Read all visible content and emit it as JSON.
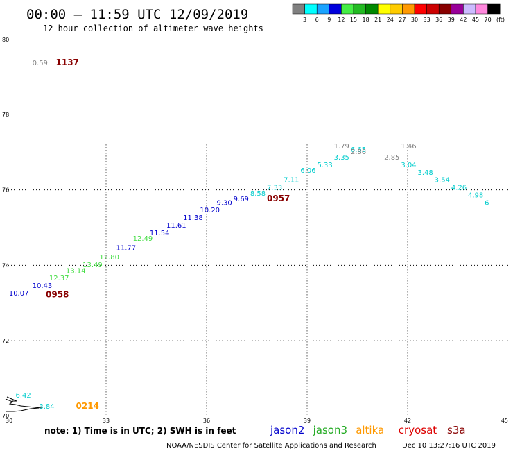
{
  "header": {
    "title": "00:00 – 11:59 UTC 12/09/2019",
    "subtitle": "12 hour collection of altimeter wave heights"
  },
  "legend": {
    "labels": [
      "3",
      "6",
      "9",
      "12",
      "15",
      "18",
      "21",
      "24",
      "27",
      "30",
      "33",
      "36",
      "39",
      "42",
      "45",
      "70"
    ],
    "colors": [
      "#808080",
      "#00ffff",
      "#1aa3ff",
      "#0000dd",
      "#44ee44",
      "#22bb22",
      "#008800",
      "#ffff00",
      "#ffcc00",
      "#ff9900",
      "#ff0000",
      "#cc0000",
      "#880000",
      "#990099",
      "#ccbbff",
      "#ff88dd",
      "#000000"
    ],
    "unit": "(ft)"
  },
  "footer": {
    "note": "note: 1) Time is in UTC; 2) SWH is in feet",
    "satellites": [
      {
        "name": "jason2",
        "color": "#0000cc"
      },
      {
        "name": "jason3",
        "color": "#22aa22"
      },
      {
        "name": "altika",
        "color": "#ff9900"
      },
      {
        "name": "cryosat",
        "color": "#dd0000"
      },
      {
        "name": "s3a",
        "color": "#880000"
      }
    ],
    "credit": "NOAA/NESDIS Center for Satellite Applications and Research",
    "timestamp": "Dec 10 13:27:16 UTC 2019"
  },
  "chart_data": {
    "type": "scatter",
    "x_ticks": [
      "30",
      "33",
      "36",
      "39",
      "42",
      "45"
    ],
    "y_ticks": [
      "70",
      "72",
      "74",
      "76",
      "78",
      "80"
    ],
    "xlim": [
      30,
      45
    ],
    "ylim": [
      70,
      80
    ],
    "grid": "dotted",
    "wave_heights": [
      {
        "x": 30.1,
        "y": 73.2,
        "value": "10.07",
        "color": "#0000cc"
      },
      {
        "x": 30.8,
        "y": 73.4,
        "value": "10.43",
        "color": "#0000cc"
      },
      {
        "x": 31.3,
        "y": 73.6,
        "value": "12.37",
        "color": "#44dd44"
      },
      {
        "x": 31.8,
        "y": 73.8,
        "value": "13.14",
        "color": "#44dd44"
      },
      {
        "x": 32.3,
        "y": 73.95,
        "value": "13.49",
        "color": "#44dd44"
      },
      {
        "x": 32.8,
        "y": 74.15,
        "value": "12.80",
        "color": "#44dd44"
      },
      {
        "x": 33.3,
        "y": 74.4,
        "value": "11.77",
        "color": "#0000cc"
      },
      {
        "x": 33.8,
        "y": 74.65,
        "value": "12.49",
        "color": "#44dd44"
      },
      {
        "x": 34.3,
        "y": 74.8,
        "value": "11.54",
        "color": "#0000cc"
      },
      {
        "x": 34.8,
        "y": 75.0,
        "value": "11.61",
        "color": "#0000cc"
      },
      {
        "x": 35.3,
        "y": 75.2,
        "value": "11.38",
        "color": "#0000cc"
      },
      {
        "x": 35.8,
        "y": 75.4,
        "value": "10.20",
        "color": "#0000cc"
      },
      {
        "x": 36.3,
        "y": 75.6,
        "value": "9.30",
        "color": "#0000cc"
      },
      {
        "x": 36.8,
        "y": 75.7,
        "value": "9.69",
        "color": "#0000cc"
      },
      {
        "x": 37.3,
        "y": 75.85,
        "value": "8.58",
        "color": "#00cccc"
      },
      {
        "x": 37.8,
        "y": 76.0,
        "value": "7.33",
        "color": "#00cccc"
      },
      {
        "x": 38.3,
        "y": 76.2,
        "value": "7.11",
        "color": "#00cccc"
      },
      {
        "x": 38.8,
        "y": 76.45,
        "value": "6.06",
        "color": "#00cccc"
      },
      {
        "x": 39.3,
        "y": 76.6,
        "value": "5.33",
        "color": "#00cccc"
      },
      {
        "x": 39.8,
        "y": 76.8,
        "value": "3.35",
        "color": "#00cccc"
      },
      {
        "x": 40.3,
        "y": 77.0,
        "value": "6.65",
        "color": "#00cccc"
      },
      {
        "x": 39.8,
        "y": 77.1,
        "value": "1.79",
        "color": "#808080"
      },
      {
        "x": 40.3,
        "y": 76.95,
        "value": "2.86",
        "color": "#808080"
      },
      {
        "x": 41.3,
        "y": 76.8,
        "value": "2.85",
        "color": "#808080"
      },
      {
        "x": 41.8,
        "y": 77.1,
        "value": "1.46",
        "color": "#808080"
      },
      {
        "x": 41.8,
        "y": 76.6,
        "value": "3.04",
        "color": "#00cccc"
      },
      {
        "x": 42.3,
        "y": 76.4,
        "value": "3.48",
        "color": "#00cccc"
      },
      {
        "x": 42.8,
        "y": 76.2,
        "value": "3.54",
        "color": "#00cccc"
      },
      {
        "x": 43.3,
        "y": 76.0,
        "value": "4.26",
        "color": "#00cccc"
      },
      {
        "x": 43.8,
        "y": 75.8,
        "value": "4.98",
        "color": "#00cccc"
      },
      {
        "x": 44.3,
        "y": 75.6,
        "value": "6",
        "color": "#00cccc"
      },
      {
        "x": 30.3,
        "y": 70.5,
        "value": "6.42",
        "color": "#00cccc"
      },
      {
        "x": 31.0,
        "y": 70.2,
        "value": "3.84",
        "color": "#00cccc"
      },
      {
        "x": 30.8,
        "y": 79.3,
        "value": "0.59",
        "color": "#808080"
      }
    ],
    "pass_times": [
      {
        "x": 31.5,
        "y": 79.3,
        "value": "1137",
        "color": "#880000"
      },
      {
        "x": 37.8,
        "y": 75.7,
        "value": "0957",
        "color": "#880000"
      },
      {
        "x": 31.2,
        "y": 73.15,
        "value": "0958",
        "color": "#880000"
      },
      {
        "x": 32.1,
        "y": 70.2,
        "value": "0214",
        "color": "#ff9900"
      }
    ]
  }
}
